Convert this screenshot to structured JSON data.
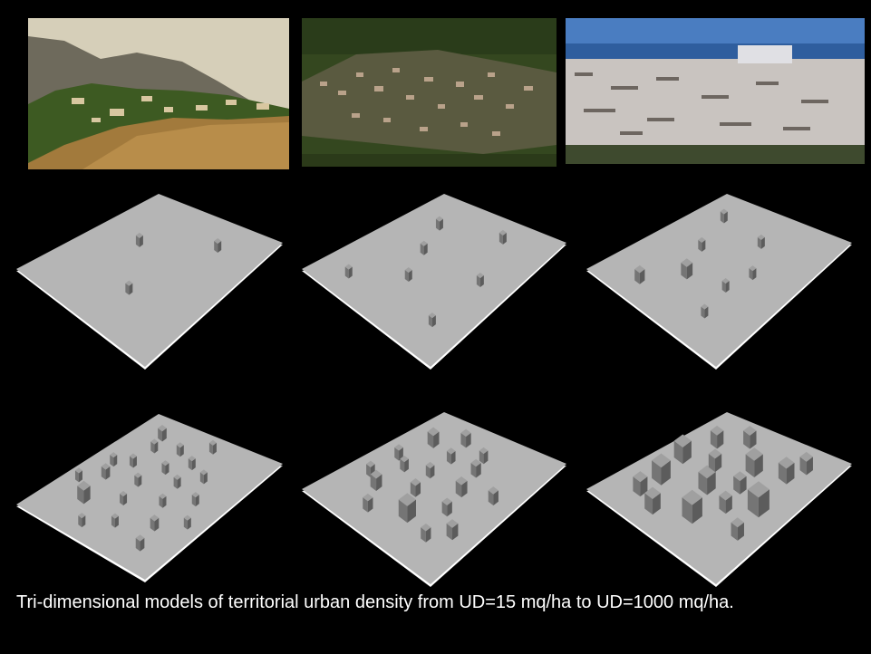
{
  "caption": "Tri-dimensional models of territorial urban density from UD=15 mq/ha to UD=1000 mq/ha.",
  "photos": [
    {
      "name": "rural-hillside-photo",
      "sky": "#d6cfb9",
      "hills": "#6e6a5c",
      "vegetation": "#3d5a22",
      "ground": "#a27a3c",
      "buildings": "#d8c7a0"
    },
    {
      "name": "village-in-forest-photo",
      "vegetation": "#34471f",
      "roofs": "#b9a28a"
    },
    {
      "name": "dense-city-photo",
      "sky": "#4a7dc1",
      "sea": "#2f5e9e",
      "buildings": "#c9c4c0",
      "shadow": "#6d6660"
    }
  ],
  "colors": {
    "plane_top": "#b5b5b5",
    "plane_edge": "#ffffff",
    "block_top": "#a0a0a0",
    "block_left": "#757575",
    "block_right": "#5c5c5c"
  },
  "models": [
    {
      "name": "model-density-1",
      "blocks": 3
    },
    {
      "name": "model-density-2",
      "blocks": 7
    },
    {
      "name": "model-density-3",
      "blocks": 8
    },
    {
      "name": "model-density-4",
      "blocks": 22
    },
    {
      "name": "model-density-5",
      "blocks": 18
    },
    {
      "name": "model-density-6",
      "blocks": 16
    }
  ]
}
